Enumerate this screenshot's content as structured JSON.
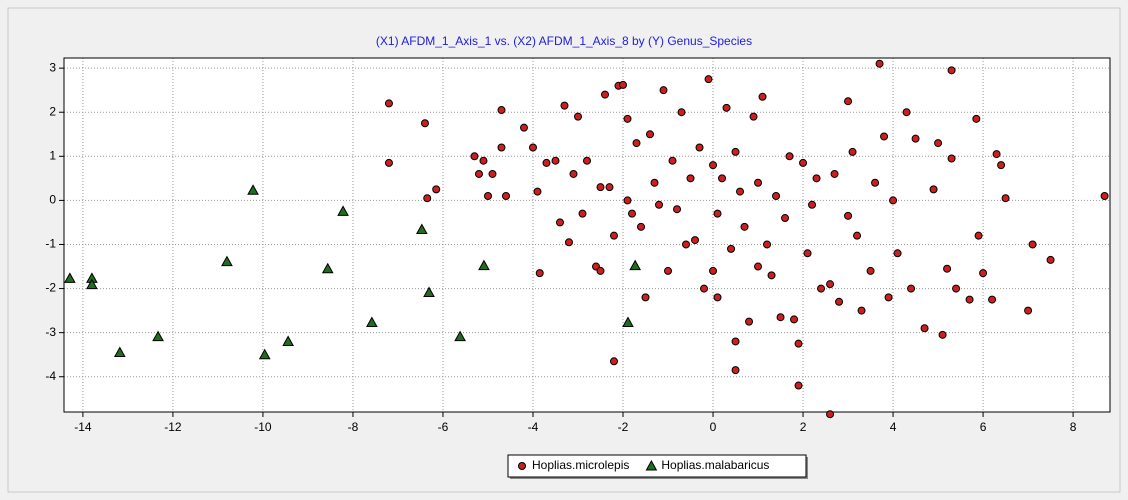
{
  "chart_data": {
    "type": "scatter",
    "title": "(X1) AFDM_1_Axis_1 vs. (X2) AFDM_1_Axis_8 by (Y) Genus_Species",
    "xlim": [
      -14.42,
      8.82
    ],
    "ylim": [
      -4.8,
      3.23
    ],
    "xticks": [
      -14,
      -12,
      -10,
      -8,
      -6,
      -4,
      -2,
      0,
      2,
      4,
      6,
      8
    ],
    "yticks": [
      -4,
      -3,
      -2,
      -1,
      0,
      1,
      2,
      3
    ],
    "grid": true,
    "legend": "bottom",
    "series": [
      {
        "name": "Hoplias.microlepis",
        "color": "#cc2020",
        "marker": "circle",
        "x": [
          -7.2,
          -7.2,
          -6.4,
          -6.35,
          -6.15,
          -5.3,
          -5.2,
          -5.1,
          -5.0,
          -4.9,
          -4.7,
          -4.7,
          -4.6,
          -4.2,
          -4.0,
          -3.9,
          -3.85,
          -3.7,
          -3.5,
          -3.4,
          -3.3,
          -3.2,
          -3.1,
          -3.0,
          -2.9,
          -2.8,
          -2.6,
          -2.5,
          -2.5,
          -2.4,
          -2.3,
          -2.2,
          -2.1,
          -2.0,
          -1.9,
          -1.8,
          -1.7,
          -1.6,
          -1.5,
          -1.4,
          -1.3,
          -1.2,
          -1.1,
          -1.0,
          -0.9,
          -0.8,
          -0.7,
          -0.6,
          -0.5,
          -0.4,
          -0.3,
          -0.2,
          -0.1,
          0.0,
          0.0,
          0.1,
          0.2,
          0.3,
          0.4,
          0.5,
          0.5,
          0.6,
          0.7,
          0.8,
          0.9,
          1.0,
          1.1,
          1.2,
          1.3,
          1.4,
          1.5,
          1.6,
          1.7,
          1.8,
          1.9,
          2.0,
          2.1,
          2.2,
          2.3,
          2.4,
          2.6,
          2.7,
          2.8,
          3.0,
          3.0,
          3.1,
          3.2,
          3.3,
          3.5,
          3.6,
          3.8,
          3.9,
          4.0,
          4.1,
          4.3,
          4.4,
          4.5,
          4.7,
          4.9,
          5.0,
          5.2,
          5.3,
          5.4,
          5.7,
          5.85,
          5.9,
          6.0,
          6.2,
          6.3,
          6.4,
          6.5,
          7.0,
          7.1,
          7.5,
          8.7,
          3.7,
          5.3,
          2.6,
          1.9,
          0.5,
          -2.2,
          5.1,
          0.1,
          1.0,
          -1.9
        ],
        "values": [
          2.2,
          0.85,
          1.75,
          0.05,
          0.25,
          1.0,
          0.6,
          0.9,
          0.1,
          0.6,
          2.05,
          1.2,
          0.1,
          1.65,
          1.2,
          0.2,
          -1.65,
          0.85,
          0.9,
          -0.5,
          2.15,
          -0.95,
          0.6,
          1.9,
          -0.3,
          0.9,
          -1.5,
          -1.6,
          0.3,
          2.4,
          0.3,
          -0.8,
          2.6,
          2.62,
          1.85,
          -0.3,
          1.3,
          -0.6,
          -2.2,
          1.5,
          0.4,
          -0.1,
          2.5,
          -1.6,
          0.9,
          -0.2,
          2.0,
          -1.0,
          0.5,
          -0.9,
          1.2,
          -2.0,
          2.75,
          0.8,
          -1.6,
          -0.3,
          0.5,
          2.1,
          -1.1,
          -3.2,
          1.1,
          0.2,
          -0.6,
          -2.75,
          1.9,
          0.4,
          2.35,
          -1.0,
          -1.7,
          0.1,
          -2.65,
          -0.4,
          1.0,
          -2.7,
          -3.25,
          0.85,
          -1.2,
          -0.1,
          0.5,
          -2.0,
          -1.9,
          0.6,
          -2.3,
          2.25,
          -0.35,
          1.1,
          -0.8,
          -2.5,
          -1.6,
          0.4,
          1.45,
          -2.2,
          0.0,
          -1.2,
          2.0,
          -2.0,
          1.4,
          -2.9,
          0.25,
          1.3,
          -1.55,
          0.95,
          -2.0,
          -2.25,
          1.85,
          -0.8,
          -1.65,
          -2.25,
          1.05,
          0.8,
          0.05,
          -2.5,
          -1.0,
          -1.35,
          0.1,
          3.1,
          2.95,
          -4.85,
          -4.2,
          -3.85,
          -3.65,
          -3.05,
          -2.2,
          -1.5,
          0.0
        ]
      },
      {
        "name": "Hoplias.malabaricus",
        "color": "#1e6e1e",
        "marker": "triangle",
        "x": [
          -14.29,
          -13.8,
          -13.8,
          -13.18,
          -12.33,
          -10.8,
          -10.22,
          -9.96,
          -9.44,
          -8.56,
          -8.22,
          -7.58,
          -6.47,
          -6.31,
          -5.62,
          -5.09,
          -1.89,
          -1.73
        ],
        "values": [
          -1.77,
          -1.77,
          -1.91,
          -3.45,
          -3.09,
          -1.39,
          0.23,
          -3.5,
          -3.2,
          -1.55,
          -0.25,
          -2.77,
          -0.66,
          -2.09,
          -3.09,
          -1.48,
          -2.77,
          -1.48
        ]
      }
    ]
  }
}
